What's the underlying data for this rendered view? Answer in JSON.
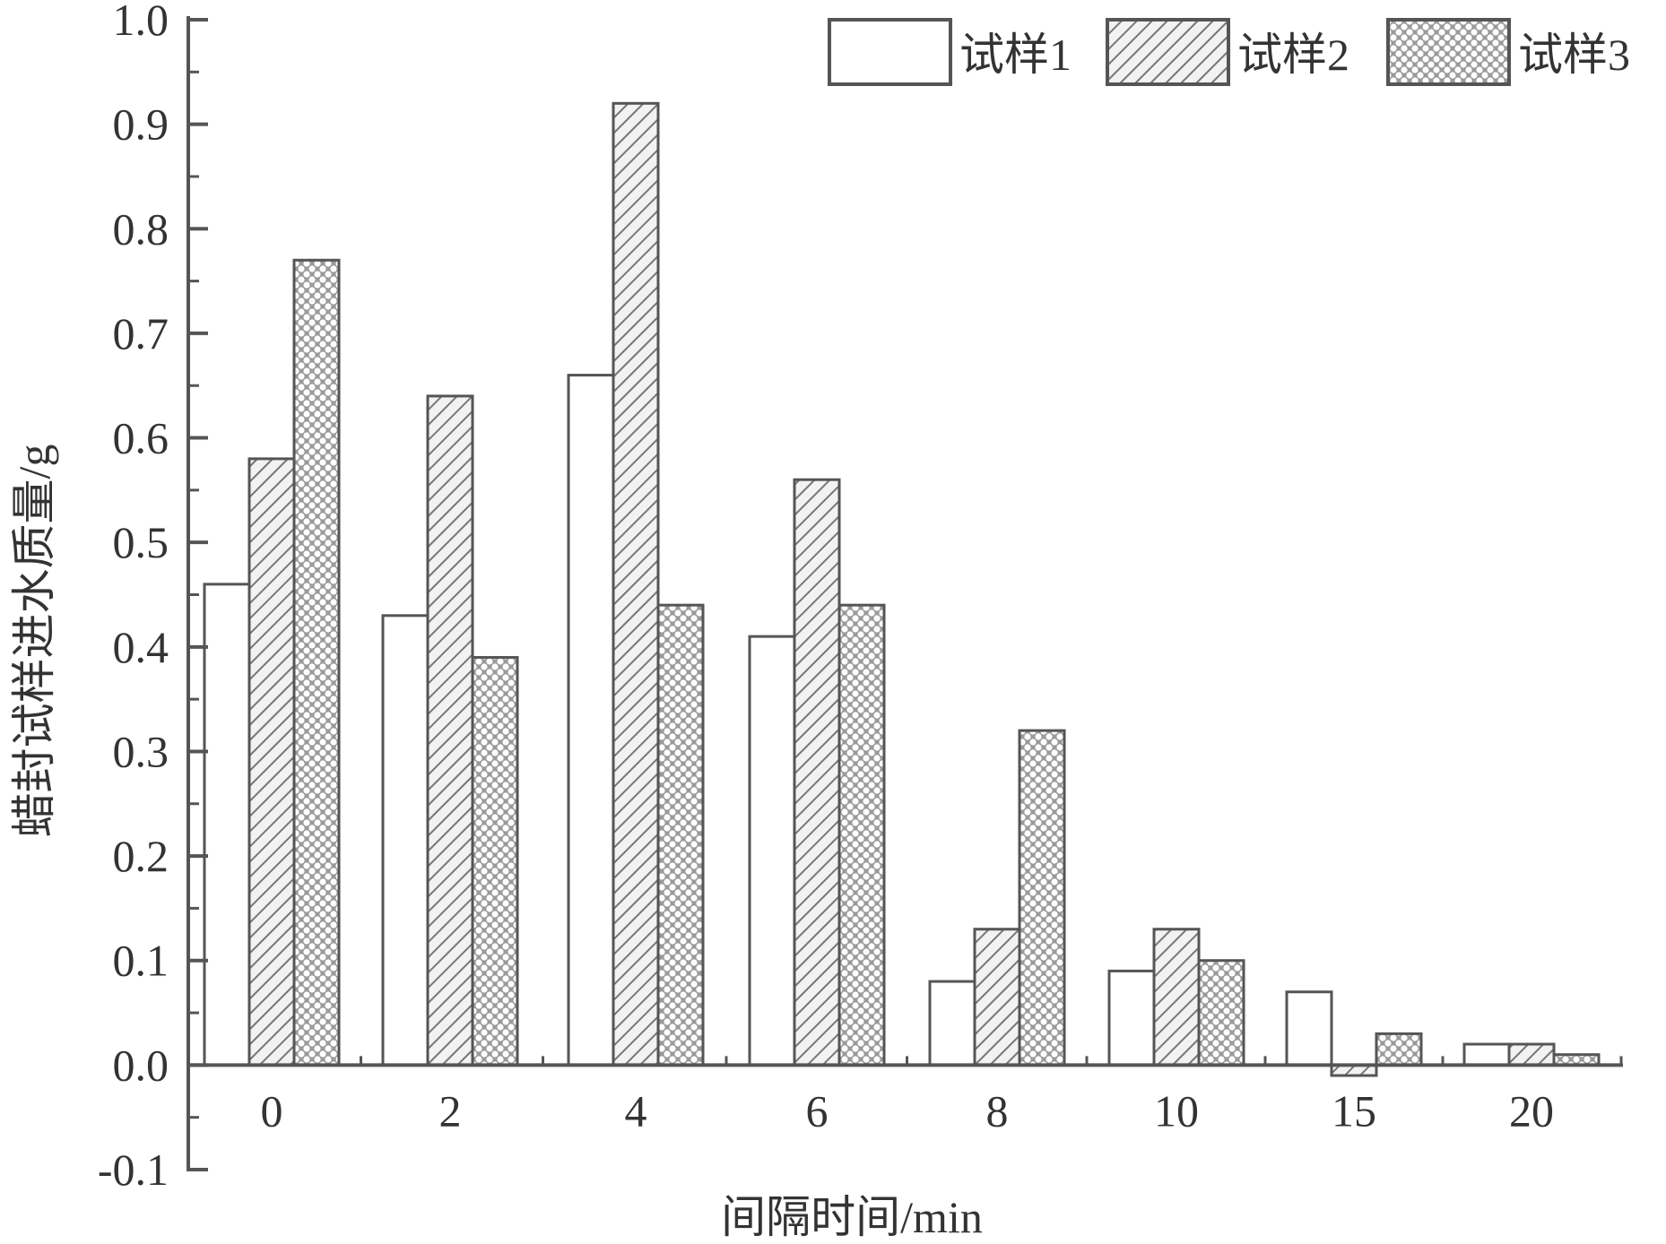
{
  "chart_data": {
    "type": "bar",
    "title": "",
    "xlabel": "间隔时间/min",
    "ylabel": "蜡封试样进水质量/g",
    "categories": [
      "0",
      "2",
      "4",
      "6",
      "8",
      "10",
      "15",
      "20"
    ],
    "series": [
      {
        "name": "试样1",
        "values": [
          0.46,
          0.43,
          0.66,
          0.41,
          0.08,
          0.09,
          0.07,
          0.02
        ]
      },
      {
        "name": "试样2",
        "values": [
          0.58,
          0.64,
          0.92,
          0.56,
          0.13,
          0.13,
          -0.01,
          0.02
        ]
      },
      {
        "name": "试样3",
        "values": [
          0.77,
          0.39,
          0.44,
          0.44,
          0.32,
          0.1,
          0.03,
          0.01
        ]
      }
    ],
    "ylim": [
      -0.1,
      1.0
    ],
    "yticks": [
      "-0.1",
      "0.0",
      "0.1",
      "0.2",
      "0.3",
      "0.4",
      "0.5",
      "0.6",
      "0.7",
      "0.8",
      "0.9",
      "1.0"
    ],
    "grid": false,
    "legend_position": "top-right",
    "colors": {
      "axis": "#555555",
      "bar_edge": "#555555",
      "series_1_fill": "#ffffff",
      "series_2_hatch": "#777777",
      "series_3_pattern": "#666666"
    }
  }
}
